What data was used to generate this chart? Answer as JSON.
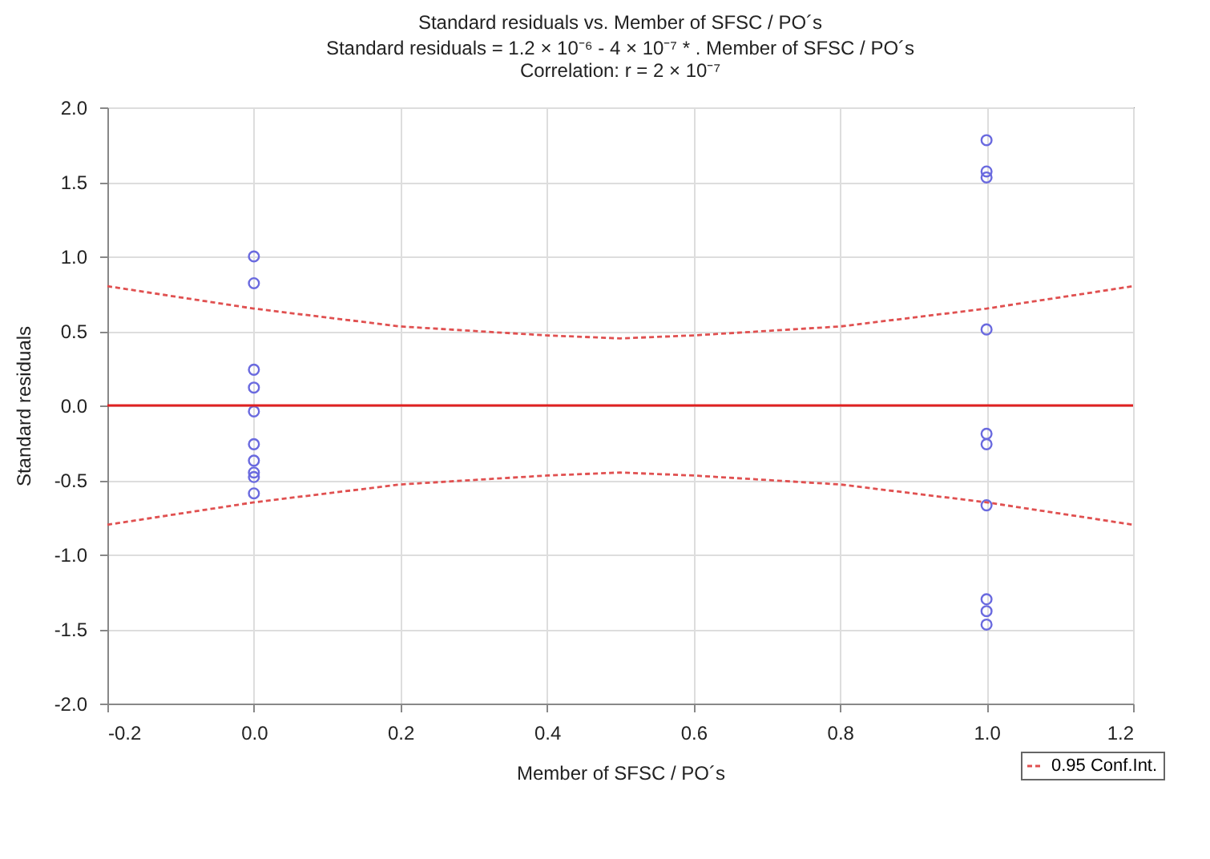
{
  "chart_data": {
    "type": "scatter",
    "title": "Standard residuals vs. Member of SFSC / PO´s",
    "subtitle": "Standard residuals = 1.2 × 10⁻⁶ - 4 × 10⁻⁷ * . Member of SFSC / PO´s",
    "annotations": [
      "Correlation: r =  2 × 10⁻⁷"
    ],
    "xlabel": "Member of SFSC / PO´s",
    "ylabel": "Standard residuals",
    "xlim": [
      -0.2,
      1.2
    ],
    "xticks": [
      {
        "value": -0.2,
        "label": "-0.2"
      },
      {
        "value": 0,
        "label": "0.0"
      },
      {
        "value": 0.2,
        "label": "0.2"
      },
      {
        "value": 0.4,
        "label": "0.4"
      },
      {
        "value": 0.6,
        "label": "0.6"
      },
      {
        "value": 0.8,
        "label": "0.8"
      },
      {
        "value": 1,
        "label": "1.0"
      },
      {
        "value": 1.2,
        "label": "1.2"
      }
    ],
    "ylim": [
      -2,
      2
    ],
    "yticks": [
      {
        "value": -2,
        "label": "-2.0"
      },
      {
        "value": -1.5,
        "label": "-1.5"
      },
      {
        "value": -1,
        "label": "-1.0"
      },
      {
        "value": -0.5,
        "label": "-0.5"
      },
      {
        "value": 0,
        "label": "0.0"
      },
      {
        "value": 0.5,
        "label": "0.5"
      },
      {
        "value": 1,
        "label": "1.0"
      },
      {
        "value": 1.5,
        "label": "1.5"
      },
      {
        "value": 2,
        "label": "2.0"
      }
    ],
    "grid": true,
    "legend": "bottom right",
    "marker": "circle",
    "series": [
      {
        "color": "#6a6adf",
        "x": [
          0,
          0,
          0,
          0,
          0,
          0,
          0,
          0,
          0,
          0,
          1,
          1,
          1,
          1,
          1,
          1,
          1,
          1,
          1,
          1
        ],
        "values": [
          1.0,
          0.82,
          0.24,
          0.12,
          -0.04,
          -0.26,
          -0.37,
          -0.45,
          -0.48,
          -0.59,
          1.78,
          1.57,
          1.53,
          0.51,
          -0.19,
          -0.26,
          -0.67,
          -1.3,
          -1.38,
          -1.47
        ]
      },
      {
        "type": "line",
        "color": "#e02020",
        "marker": "none",
        "line_style": "solid",
        "x": [
          -0.2,
          1.2
        ],
        "values": [
          0,
          0
        ]
      },
      {
        "type": "line",
        "name": "0.95 Conf.Int.",
        "color": "#e05050",
        "marker": "none",
        "line_style": "dashed",
        "x": [
          -0.2,
          0,
          0.2,
          0.4,
          0.5,
          0.6,
          0.8,
          1,
          1.2
        ],
        "values": [
          0.8,
          0.65,
          0.53,
          0.47,
          0.45,
          0.47,
          0.53,
          0.65,
          0.8
        ]
      },
      {
        "type": "line",
        "color": "#e05050",
        "marker": "none",
        "line_style": "dashed",
        "x": [
          -0.2,
          0,
          0.2,
          0.4,
          0.5,
          0.6,
          0.8,
          1,
          1.2
        ],
        "values": [
          -0.8,
          -0.65,
          -0.53,
          -0.47,
          -0.45,
          -0.47,
          -0.53,
          -0.65,
          -0.8
        ]
      }
    ]
  }
}
